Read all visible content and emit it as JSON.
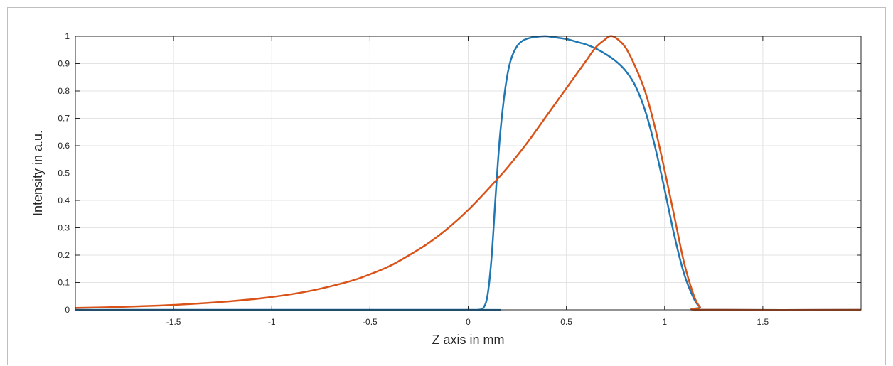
{
  "chart_data": {
    "type": "line",
    "title": "",
    "xlabel": "Z axis in mm",
    "ylabel": "Intensity in a.u.",
    "xlim": [
      -2.0,
      2.0
    ],
    "ylim": [
      0,
      1
    ],
    "grid": true,
    "legend": "none",
    "x_ticks": [
      -1.5,
      -1,
      -0.5,
      0,
      0.5,
      1,
      1.5
    ],
    "x_tick_labels": [
      "-1.5",
      "-1",
      "-0.5",
      "0",
      "0.5",
      "1",
      "1.5"
    ],
    "y_ticks": [
      0,
      0.1,
      0.2,
      0.3,
      0.4,
      0.5,
      0.6,
      0.7,
      0.8,
      0.9,
      1
    ],
    "y_tick_labels": [
      "0",
      "0.1",
      "0.2",
      "0.3",
      "0.4",
      "0.5",
      "0.6",
      "0.7",
      "0.8",
      "0.9",
      "1"
    ],
    "colors": {
      "blue": "#1f77b4",
      "orange": "#d95319",
      "grid": "#e3e3e3",
      "axis": "#262626"
    },
    "series": [
      {
        "color": "#1f77b4",
        "x": [
          -2.0,
          0.0,
          0.05,
          0.08,
          0.1,
          0.12,
          0.14,
          0.16,
          0.18,
          0.2,
          0.22,
          0.25,
          0.28,
          0.32,
          0.36,
          0.4,
          0.45,
          0.5,
          0.55,
          0.6,
          0.65,
          0.7,
          0.75,
          0.8,
          0.85,
          0.9,
          0.95,
          1.0,
          1.05,
          1.1,
          1.15,
          1.18,
          1.2,
          2.0
        ],
        "y": [
          0.0,
          0.0,
          0.0,
          0.01,
          0.06,
          0.2,
          0.42,
          0.62,
          0.76,
          0.86,
          0.92,
          0.965,
          0.985,
          0.995,
          0.999,
          1.0,
          0.995,
          0.99,
          0.98,
          0.97,
          0.955,
          0.935,
          0.91,
          0.875,
          0.82,
          0.73,
          0.6,
          0.44,
          0.27,
          0.13,
          0.04,
          0.01,
          0.0,
          0.0
        ]
      },
      {
        "color": "#d95319",
        "x": [
          -2.0,
          -1.8,
          -1.6,
          -1.4,
          -1.2,
          -1.0,
          -0.8,
          -0.6,
          -0.5,
          -0.4,
          -0.3,
          -0.2,
          -0.1,
          0.0,
          0.1,
          0.2,
          0.3,
          0.4,
          0.5,
          0.6,
          0.65,
          0.7,
          0.72,
          0.75,
          0.8,
          0.85,
          0.9,
          0.95,
          1.0,
          1.05,
          1.1,
          1.15,
          1.18,
          1.2,
          2.0
        ],
        "y": [
          0.007,
          0.01,
          0.015,
          0.022,
          0.032,
          0.047,
          0.07,
          0.105,
          0.13,
          0.16,
          0.2,
          0.245,
          0.3,
          0.365,
          0.44,
          0.52,
          0.61,
          0.71,
          0.81,
          0.91,
          0.96,
          0.99,
          1.0,
          0.995,
          0.96,
          0.89,
          0.8,
          0.67,
          0.51,
          0.34,
          0.17,
          0.05,
          0.01,
          0.0,
          0.0
        ]
      }
    ]
  }
}
